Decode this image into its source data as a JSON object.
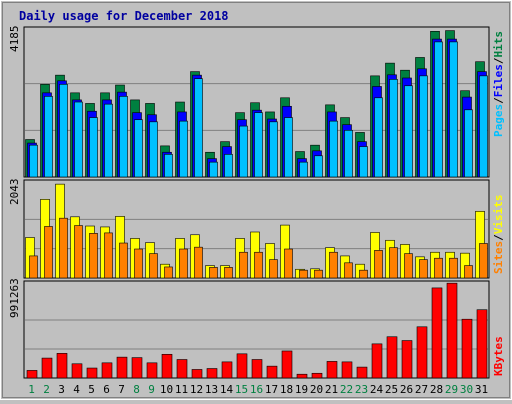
{
  "chart_data": [
    {
      "type": "bar",
      "title": "Daily usage for December 2018",
      "max_label": "4185",
      "legend": [
        "Pages",
        "Files",
        "Hits"
      ],
      "colors": {
        "hits": "#008040",
        "files": "#0000FF",
        "pages": "#00C0FF"
      },
      "categories": [
        "1",
        "2",
        "3",
        "4",
        "5",
        "6",
        "7",
        "8",
        "9",
        "10",
        "11",
        "12",
        "13",
        "14",
        "15",
        "16",
        "17",
        "18",
        "19",
        "20",
        "21",
        "22",
        "23",
        "24",
        "25",
        "26",
        "27",
        "28",
        "29",
        "30",
        "31"
      ],
      "weekend_days": [
        "1",
        "2",
        "8",
        "9",
        "15",
        "16",
        "22",
        "23",
        "29",
        "30"
      ],
      "ylim": [
        0,
        4185
      ],
      "series": [
        {
          "name": "Hits",
          "values": [
            1060,
            2620,
            2880,
            2380,
            2080,
            2380,
            2600,
            2180,
            2080,
            880,
            2120,
            2980,
            700,
            1000,
            1820,
            2100,
            1840,
            2240,
            720,
            900,
            2040,
            1680,
            1260,
            2860,
            3220,
            3020,
            3380,
            4120,
            4140,
            2440,
            3260
          ]
        },
        {
          "name": "Files",
          "values": [
            960,
            2380,
            2720,
            2180,
            1860,
            2180,
            2400,
            1820,
            1760,
            700,
            1840,
            2880,
            520,
            860,
            1620,
            1890,
            1640,
            2000,
            520,
            740,
            1840,
            1480,
            1000,
            2560,
            2890,
            2800,
            3060,
            3900,
            3900,
            2260,
            2980
          ]
        },
        {
          "name": "Pages",
          "values": [
            900,
            2280,
            2620,
            2120,
            1680,
            2060,
            2280,
            1620,
            1560,
            640,
            1580,
            2780,
            420,
            640,
            1440,
            1820,
            1560,
            1680,
            420,
            600,
            1580,
            1320,
            860,
            2240,
            2760,
            2580,
            2860,
            3820,
            3820,
            1900,
            2860
          ]
        }
      ]
    },
    {
      "type": "bar",
      "max_label": "2043",
      "legend": [
        "Sites",
        "Visits"
      ],
      "colors": {
        "visits": "#FFFF00",
        "sites": "#FF8000"
      },
      "categories": [
        "1",
        "2",
        "3",
        "4",
        "5",
        "6",
        "7",
        "8",
        "9",
        "10",
        "11",
        "12",
        "13",
        "14",
        "15",
        "16",
        "17",
        "18",
        "19",
        "20",
        "21",
        "22",
        "23",
        "24",
        "25",
        "26",
        "27",
        "28",
        "29",
        "30",
        "31"
      ],
      "ylim": [
        0,
        2043
      ],
      "series": [
        {
          "name": "Visits",
          "values": [
            880,
            1710,
            2040,
            1330,
            1130,
            1110,
            1340,
            860,
            770,
            300,
            860,
            940,
            270,
            270,
            860,
            1000,
            750,
            1150,
            190,
            200,
            660,
            480,
            300,
            990,
            820,
            730,
            460,
            560,
            560,
            540,
            1450
          ]
        },
        {
          "name": "Sites",
          "values": [
            480,
            1120,
            1300,
            1140,
            970,
            980,
            760,
            630,
            530,
            240,
            630,
            670,
            230,
            230,
            560,
            560,
            400,
            630,
            170,
            170,
            560,
            330,
            170,
            600,
            660,
            530,
            400,
            430,
            430,
            270,
            750
          ]
        }
      ]
    },
    {
      "type": "bar",
      "max_label": "991263",
      "legend": [
        "KBytes"
      ],
      "colors": {
        "kbytes": "#FF0000"
      },
      "categories": [
        "1",
        "2",
        "3",
        "4",
        "5",
        "6",
        "7",
        "8",
        "9",
        "10",
        "11",
        "12",
        "13",
        "14",
        "15",
        "16",
        "17",
        "18",
        "19",
        "20",
        "21",
        "22",
        "23",
        "24",
        "25",
        "26",
        "27",
        "28",
        "29",
        "30",
        "31"
      ],
      "ylim": [
        0,
        991263
      ],
      "series": [
        {
          "name": "KBytes",
          "values": [
            80000,
            210000,
            260000,
            150000,
            105000,
            160000,
            220000,
            215000,
            160000,
            250000,
            195000,
            90000,
            100000,
            170000,
            255000,
            195000,
            125000,
            285000,
            40000,
            50000,
            175000,
            170000,
            115000,
            360000,
            435000,
            395000,
            540000,
            950000,
            1000000,
            620000,
            720000
          ]
        }
      ]
    }
  ]
}
